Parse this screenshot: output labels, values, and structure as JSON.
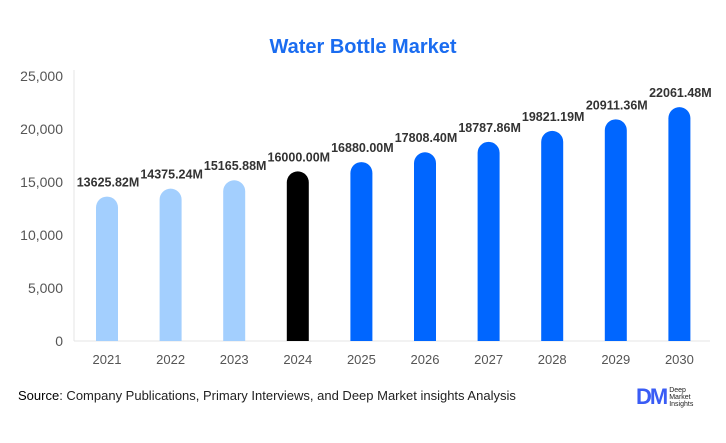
{
  "chart_data": {
    "type": "bar",
    "title": "Water Bottle Market",
    "categories": [
      "2021",
      "2022",
      "2023",
      "2024",
      "2025",
      "2026",
      "2027",
      "2028",
      "2029",
      "2030"
    ],
    "values": [
      13625.82,
      14375.24,
      15165.88,
      16000.0,
      16880.0,
      17808.4,
      18787.86,
      19821.19,
      20911.36,
      22061.48
    ],
    "data_labels": [
      "13625.82M",
      "14375.24M",
      "15165.88M",
      "16000.00M",
      "16880.00M",
      "17808.40M",
      "18787.86M",
      "19821.19M",
      "20911.36M",
      "22061.48M"
    ],
    "ylim": [
      0,
      25000
    ],
    "yticks": [
      0,
      5000,
      10000,
      15000,
      20000,
      25000
    ],
    "ytick_labels": [
      "0",
      "5,000",
      "10,000",
      "15,000",
      "20,000",
      "25,000"
    ],
    "grid": false,
    "colors": {
      "historical": "#a3cffe",
      "base_year": "#000000",
      "forecast": "#0066ff"
    },
    "bar_colors": [
      "#a3cffe",
      "#a3cffe",
      "#a3cffe",
      "#000000",
      "#0066ff",
      "#0066ff",
      "#0066ff",
      "#0066ff",
      "#0066ff",
      "#0066ff"
    ]
  },
  "source": {
    "label": "Source",
    "text": ": Company Publications, Primary Interviews, and Deep Market insights Analysis"
  },
  "logo": {
    "mark": "DM",
    "lines": [
      "Deep",
      "Market",
      "Insights"
    ]
  }
}
